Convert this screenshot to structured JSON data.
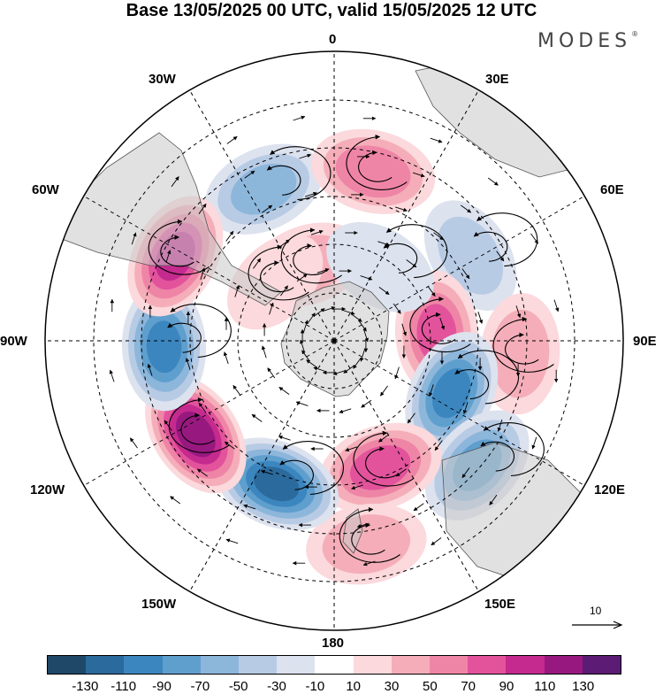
{
  "title": "Base 13/05/2025 00 UTC, valid 15/05/2025 12 UTC",
  "brand": "MODES",
  "brand_mark": "®",
  "longitude_labels": {
    "top": "0",
    "top_right": "30E",
    "right_upper": "60E",
    "right": "90E",
    "right_lower": "120E",
    "bottom_right": "150E",
    "bottom": "180",
    "bottom_left": "150W",
    "left_lower": "120W",
    "left": "90W",
    "left_upper": "60W",
    "top_left": "30W"
  },
  "vector_scale": {
    "label": "10"
  },
  "colorbar": {
    "colors": [
      "#1f4868",
      "#2b6a9c",
      "#3c86bf",
      "#5f9fce",
      "#8db6db",
      "#b8cbe4",
      "#dde2ef",
      "#ffffff",
      "#fbd9dc",
      "#f5aeb9",
      "#ef85a6",
      "#e3539c",
      "#c52a8f",
      "#97197f",
      "#5c1b74"
    ],
    "tick_labels": [
      "-130",
      "-110",
      "-90",
      "-70",
      "-50",
      "-30",
      "-10",
      "10",
      "30",
      "50",
      "70",
      "90",
      "110",
      "130"
    ]
  },
  "anomaly_centers": [
    {
      "lon": -25,
      "lat": -38,
      "value": -60
    },
    {
      "lon": 13,
      "lat": -36,
      "value": 70
    },
    {
      "lon": 58,
      "lat": -40,
      "value": -40
    },
    {
      "lon": 86,
      "lat": -58,
      "value": 80
    },
    {
      "lon": 94,
      "lat": -32,
      "value": 45
    },
    {
      "lon": 114,
      "lat": -50,
      "value": -100
    },
    {
      "lon": 131,
      "lat": -31,
      "value": -80
    },
    {
      "lon": 160,
      "lat": -48,
      "value": 85
    },
    {
      "lon": 171,
      "lat": -26,
      "value": 45
    },
    {
      "lon": -158,
      "lat": -42,
      "value": -120
    },
    {
      "lon": -124,
      "lat": -38,
      "value": 125
    },
    {
      "lon": -92,
      "lat": -37,
      "value": -100
    },
    {
      "lon": -62,
      "lat": -34,
      "value": 100
    },
    {
      "lon": -19,
      "lat": -65,
      "value": 40
    },
    {
      "lon": 32,
      "lat": -63,
      "value": -30
    },
    {
      "lon": -45,
      "lat": -64,
      "value": 20
    }
  ]
}
